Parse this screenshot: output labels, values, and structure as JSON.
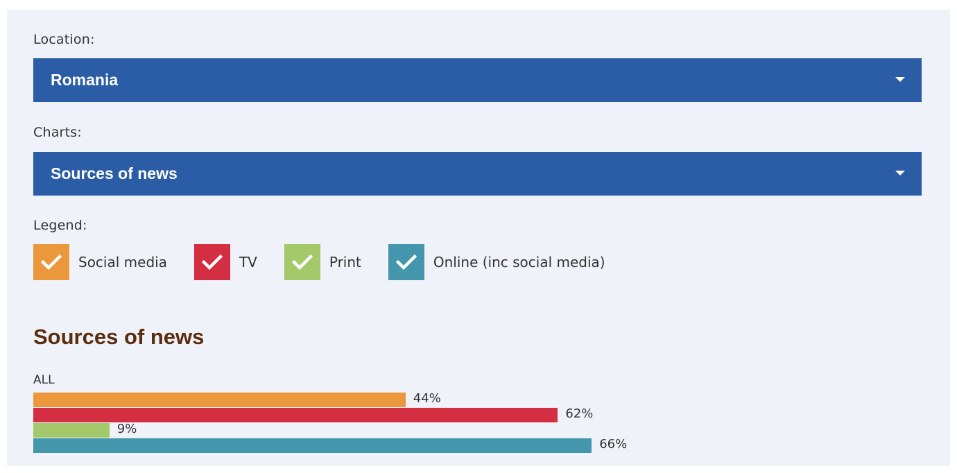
{
  "location": {
    "label": "Location:",
    "selected": "Romania"
  },
  "charts": {
    "label": "Charts:",
    "selected": "Sources of news"
  },
  "legend": {
    "label": "Legend:",
    "items": [
      {
        "label": "Social media",
        "color": "#eb983c",
        "checked": true
      },
      {
        "label": "TV",
        "color": "#d42e43",
        "checked": true
      },
      {
        "label": "Print",
        "color": "#a3c96a",
        "checked": true
      },
      {
        "label": "Online (inc social media)",
        "color": "#4496ad",
        "checked": true
      }
    ]
  },
  "chart_data": {
    "type": "bar",
    "orientation": "horizontal",
    "title": "Sources of news",
    "categories": [
      "ALL"
    ],
    "series": [
      {
        "name": "Social media",
        "values": [
          44
        ],
        "label": "44%",
        "color": "#eb983c"
      },
      {
        "name": "TV",
        "values": [
          62
        ],
        "label": "62%",
        "color": "#d42e43"
      },
      {
        "name": "Print",
        "values": [
          9
        ],
        "label": "9%",
        "color": "#a3c96a"
      },
      {
        "name": "Online (inc social media)",
        "values": [
          66
        ],
        "label": "66%",
        "color": "#4496ad"
      }
    ],
    "xlim": [
      0,
      100
    ],
    "grid": false
  }
}
